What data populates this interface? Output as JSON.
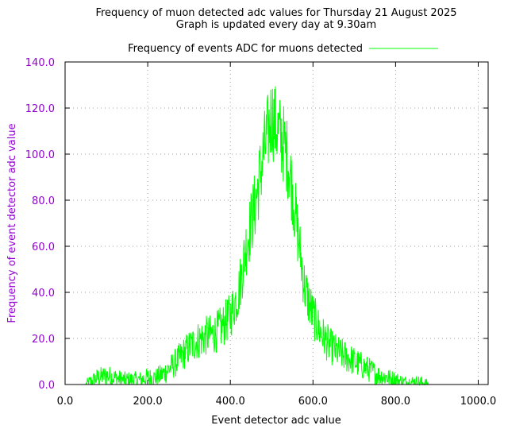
{
  "chart_data": {
    "type": "line",
    "title": "Frequency of muon detected adc values for Thursday 21 August 2025",
    "subtitle": "Graph is updated every day at 9.30am",
    "xlabel": "Event detector adc value",
    "ylabel": "Frequency of event detector adc value",
    "xlim": [
      0,
      1024
    ],
    "ylim": [
      0,
      140
    ],
    "x_ticks": [
      "0.0",
      "200.0",
      "400.0",
      "600.0",
      "800.0",
      "1000.0"
    ],
    "x_tick_values": [
      0,
      200,
      400,
      600,
      800,
      1000
    ],
    "y_ticks": [
      "0.0",
      "20.0",
      "40.0",
      "60.0",
      "80.0",
      "100.0",
      "120.0",
      "140.0"
    ],
    "y_tick_values": [
      0,
      20,
      40,
      60,
      80,
      100,
      120,
      140
    ],
    "grid": true,
    "legend_position": "top",
    "colors": {
      "series": "#00ff00",
      "ylabel": "#9400d3",
      "axis": "#000000",
      "grid": "#a0a0a0"
    },
    "series": [
      {
        "name": "Frequency of events ADC for muons detected",
        "x": [
          0,
          40,
          50,
          60,
          80,
          100,
          120,
          140,
          160,
          180,
          200,
          220,
          240,
          260,
          280,
          300,
          320,
          340,
          360,
          380,
          400,
          420,
          440,
          460,
          480,
          490,
          500,
          510,
          520,
          530,
          540,
          550,
          560,
          580,
          600,
          620,
          640,
          660,
          680,
          700,
          720,
          740,
          760,
          780,
          800,
          820,
          840,
          860,
          880,
          900,
          920,
          940,
          960,
          980,
          1000,
          1012,
          1023
        ],
        "values": [
          0,
          0,
          0,
          1,
          3,
          4,
          3,
          2,
          2,
          2,
          3,
          3,
          5,
          8,
          12,
          16,
          19,
          21,
          22,
          25,
          30,
          40,
          62,
          78,
          100,
          108,
          117,
          112,
          108,
          104,
          97,
          85,
          70,
          42,
          30,
          22,
          17,
          14,
          12,
          10,
          8,
          6,
          4,
          3,
          2,
          1,
          1,
          1,
          0,
          0,
          0,
          0,
          0,
          0,
          0,
          0,
          0
        ]
      }
    ]
  }
}
